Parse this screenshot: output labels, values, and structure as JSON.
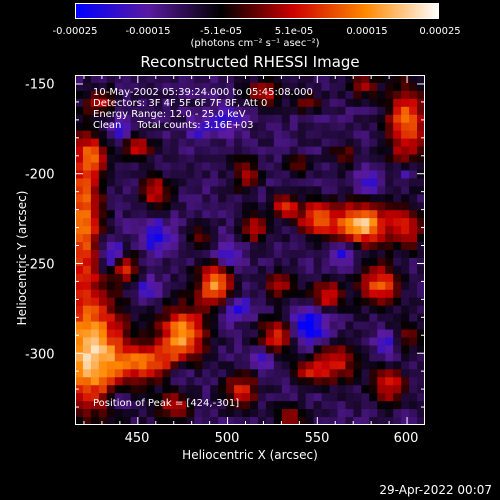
{
  "colorbar": {
    "ticks": [
      "-0.00025",
      "-0.00015",
      "-5.1e-05",
      "5.1e-05",
      "0.00015",
      "0.00025"
    ],
    "units": "(photons cm⁻² s⁻¹ asec⁻²)",
    "range": [
      -0.00025,
      0.00025
    ],
    "colors": [
      "#0000ff",
      "#5a1aa0",
      "#000000",
      "#cc0000",
      "#ff8800",
      "#ffffff"
    ]
  },
  "annotations": {
    "time_range": "10-May-2002 05:39:24.000 to 05:45:08.000",
    "detectors": "Detectors: 3F 4F 5F 6F 7F 8F, Att 0",
    "energy": "Energy Range: 12.0 - 25.0 keV",
    "method_counts": "Clean     Total counts: 3.16E+03",
    "peak": "Position of Peak = [424,-301]"
  },
  "footer": {
    "timestamp": "29-Apr-2022 00:07"
  },
  "chart_data": {
    "type": "heatmap",
    "title": "Reconstructed RHESSI Image",
    "xlabel": "Heliocentric X (arcsec)",
    "ylabel": "Heliocentric Y (arcsec)",
    "xlim": [
      415,
      610
    ],
    "ylim": [
      -340,
      -145
    ],
    "x_ticks": [
      "450",
      "500",
      "550",
      "600"
    ],
    "y_ticks": [
      "-150",
      "-200",
      "-250",
      "-300"
    ],
    "peak": [
      424,
      -301
    ],
    "sources": [
      {
        "x": 424,
        "y": -301,
        "sx": 14,
        "sy": 22,
        "a": 1.0
      },
      {
        "x": 420,
        "y": -225,
        "sx": 7,
        "sy": 30,
        "a": 0.8
      },
      {
        "x": 475,
        "y": -290,
        "sx": 9,
        "sy": 11,
        "a": 0.9
      },
      {
        "x": 493,
        "y": -262,
        "sx": 7,
        "sy": 9,
        "a": 0.85
      },
      {
        "x": 455,
        "y": -305,
        "sx": 11,
        "sy": 7,
        "a": 0.65
      },
      {
        "x": 443,
        "y": -252,
        "sx": 5,
        "sy": 6,
        "a": 0.6
      },
      {
        "x": 575,
        "y": -228,
        "sx": 10,
        "sy": 8,
        "a": 1.0
      },
      {
        "x": 550,
        "y": -225,
        "sx": 8,
        "sy": 7,
        "a": 0.7
      },
      {
        "x": 532,
        "y": -218,
        "sx": 5,
        "sy": 5,
        "a": 0.55
      },
      {
        "x": 600,
        "y": -230,
        "sx": 7,
        "sy": 8,
        "a": 0.6
      },
      {
        "x": 600,
        "y": -172,
        "sx": 8,
        "sy": 16,
        "a": 0.75
      },
      {
        "x": 585,
        "y": -262,
        "sx": 8,
        "sy": 8,
        "a": 0.7
      },
      {
        "x": 555,
        "y": -268,
        "sx": 7,
        "sy": 6,
        "a": 0.6
      },
      {
        "x": 530,
        "y": -262,
        "sx": 6,
        "sy": 5,
        "a": 0.5
      },
      {
        "x": 528,
        "y": -290,
        "sx": 7,
        "sy": 7,
        "a": 0.65
      },
      {
        "x": 560,
        "y": -305,
        "sx": 8,
        "sy": 8,
        "a": 0.6
      },
      {
        "x": 590,
        "y": -318,
        "sx": 7,
        "sy": 7,
        "a": 0.55
      },
      {
        "x": 508,
        "y": -320,
        "sx": 7,
        "sy": 7,
        "a": 0.55
      },
      {
        "x": 470,
        "y": -330,
        "sx": 7,
        "sy": 6,
        "a": 0.5
      },
      {
        "x": 515,
        "y": -230,
        "sx": 6,
        "sy": 6,
        "a": 0.55
      },
      {
        "x": 510,
        "y": -200,
        "sx": 5,
        "sy": 7,
        "a": 0.5
      },
      {
        "x": 460,
        "y": -210,
        "sx": 6,
        "sy": 6,
        "a": 0.55
      },
      {
        "x": 450,
        "y": -185,
        "sx": 6,
        "sy": 5,
        "a": 0.5
      },
      {
        "x": 430,
        "y": -160,
        "sx": 6,
        "sy": 5,
        "a": 0.45
      },
      {
        "x": 520,
        "y": -155,
        "sx": 7,
        "sy": 5,
        "a": 0.5
      },
      {
        "x": 545,
        "y": -160,
        "sx": 5,
        "sy": 4,
        "a": 0.4
      },
      {
        "x": 575,
        "y": -150,
        "sx": 6,
        "sy": 5,
        "a": 0.45
      },
      {
        "x": 535,
        "y": -335,
        "sx": 6,
        "sy": 5,
        "a": 0.4
      },
      {
        "x": 600,
        "y": -290,
        "sx": 5,
        "sy": 6,
        "a": 0.45
      },
      {
        "x": 545,
        "y": -310,
        "sx": 6,
        "sy": 5,
        "a": 0.45
      },
      {
        "x": 425,
        "y": -190,
        "sx": 6,
        "sy": 7,
        "a": 0.45
      },
      {
        "x": 565,
        "y": -190,
        "sx": 5,
        "sy": 5,
        "a": 0.4
      },
      {
        "x": 540,
        "y": -195,
        "sx": 5,
        "sy": 4,
        "a": 0.35
      },
      {
        "x": 485,
        "y": -235,
        "sx": 5,
        "sy": 5,
        "a": 0.35
      },
      {
        "x": 565,
        "y": -245,
        "sx": 5,
        "sy": 4,
        "a": -0.4
      },
      {
        "x": 545,
        "y": -285,
        "sx": 8,
        "sy": 8,
        "a": -0.55
      },
      {
        "x": 500,
        "y": -245,
        "sx": 6,
        "sy": 6,
        "a": -0.4
      },
      {
        "x": 460,
        "y": -235,
        "sx": 6,
        "sy": 6,
        "a": -0.45
      },
      {
        "x": 435,
        "y": -245,
        "sx": 5,
        "sy": 6,
        "a": -0.5
      },
      {
        "x": 505,
        "y": -275,
        "sx": 6,
        "sy": 5,
        "a": -0.4
      },
      {
        "x": 440,
        "y": -175,
        "sx": 5,
        "sy": 5,
        "a": -0.35
      },
      {
        "x": 580,
        "y": -205,
        "sx": 5,
        "sy": 5,
        "a": -0.35
      },
      {
        "x": 500,
        "y": -170,
        "sx": 6,
        "sy": 5,
        "a": -0.3
      },
      {
        "x": 485,
        "y": -175,
        "sx": 5,
        "sy": 5,
        "a": -0.3
      },
      {
        "x": 455,
        "y": -265,
        "sx": 5,
        "sy": 5,
        "a": -0.35
      },
      {
        "x": 475,
        "y": -310,
        "sx": 5,
        "sy": 5,
        "a": -0.3
      },
      {
        "x": 590,
        "y": -295,
        "sx": 5,
        "sy": 5,
        "a": -0.3
      },
      {
        "x": 520,
        "y": -305,
        "sx": 5,
        "sy": 5,
        "a": -0.3
      },
      {
        "x": 440,
        "y": -325,
        "sx": 5,
        "sy": 5,
        "a": -0.3
      },
      {
        "x": 600,
        "y": -200,
        "sx": 4,
        "sy": 4,
        "a": -0.3
      }
    ]
  }
}
